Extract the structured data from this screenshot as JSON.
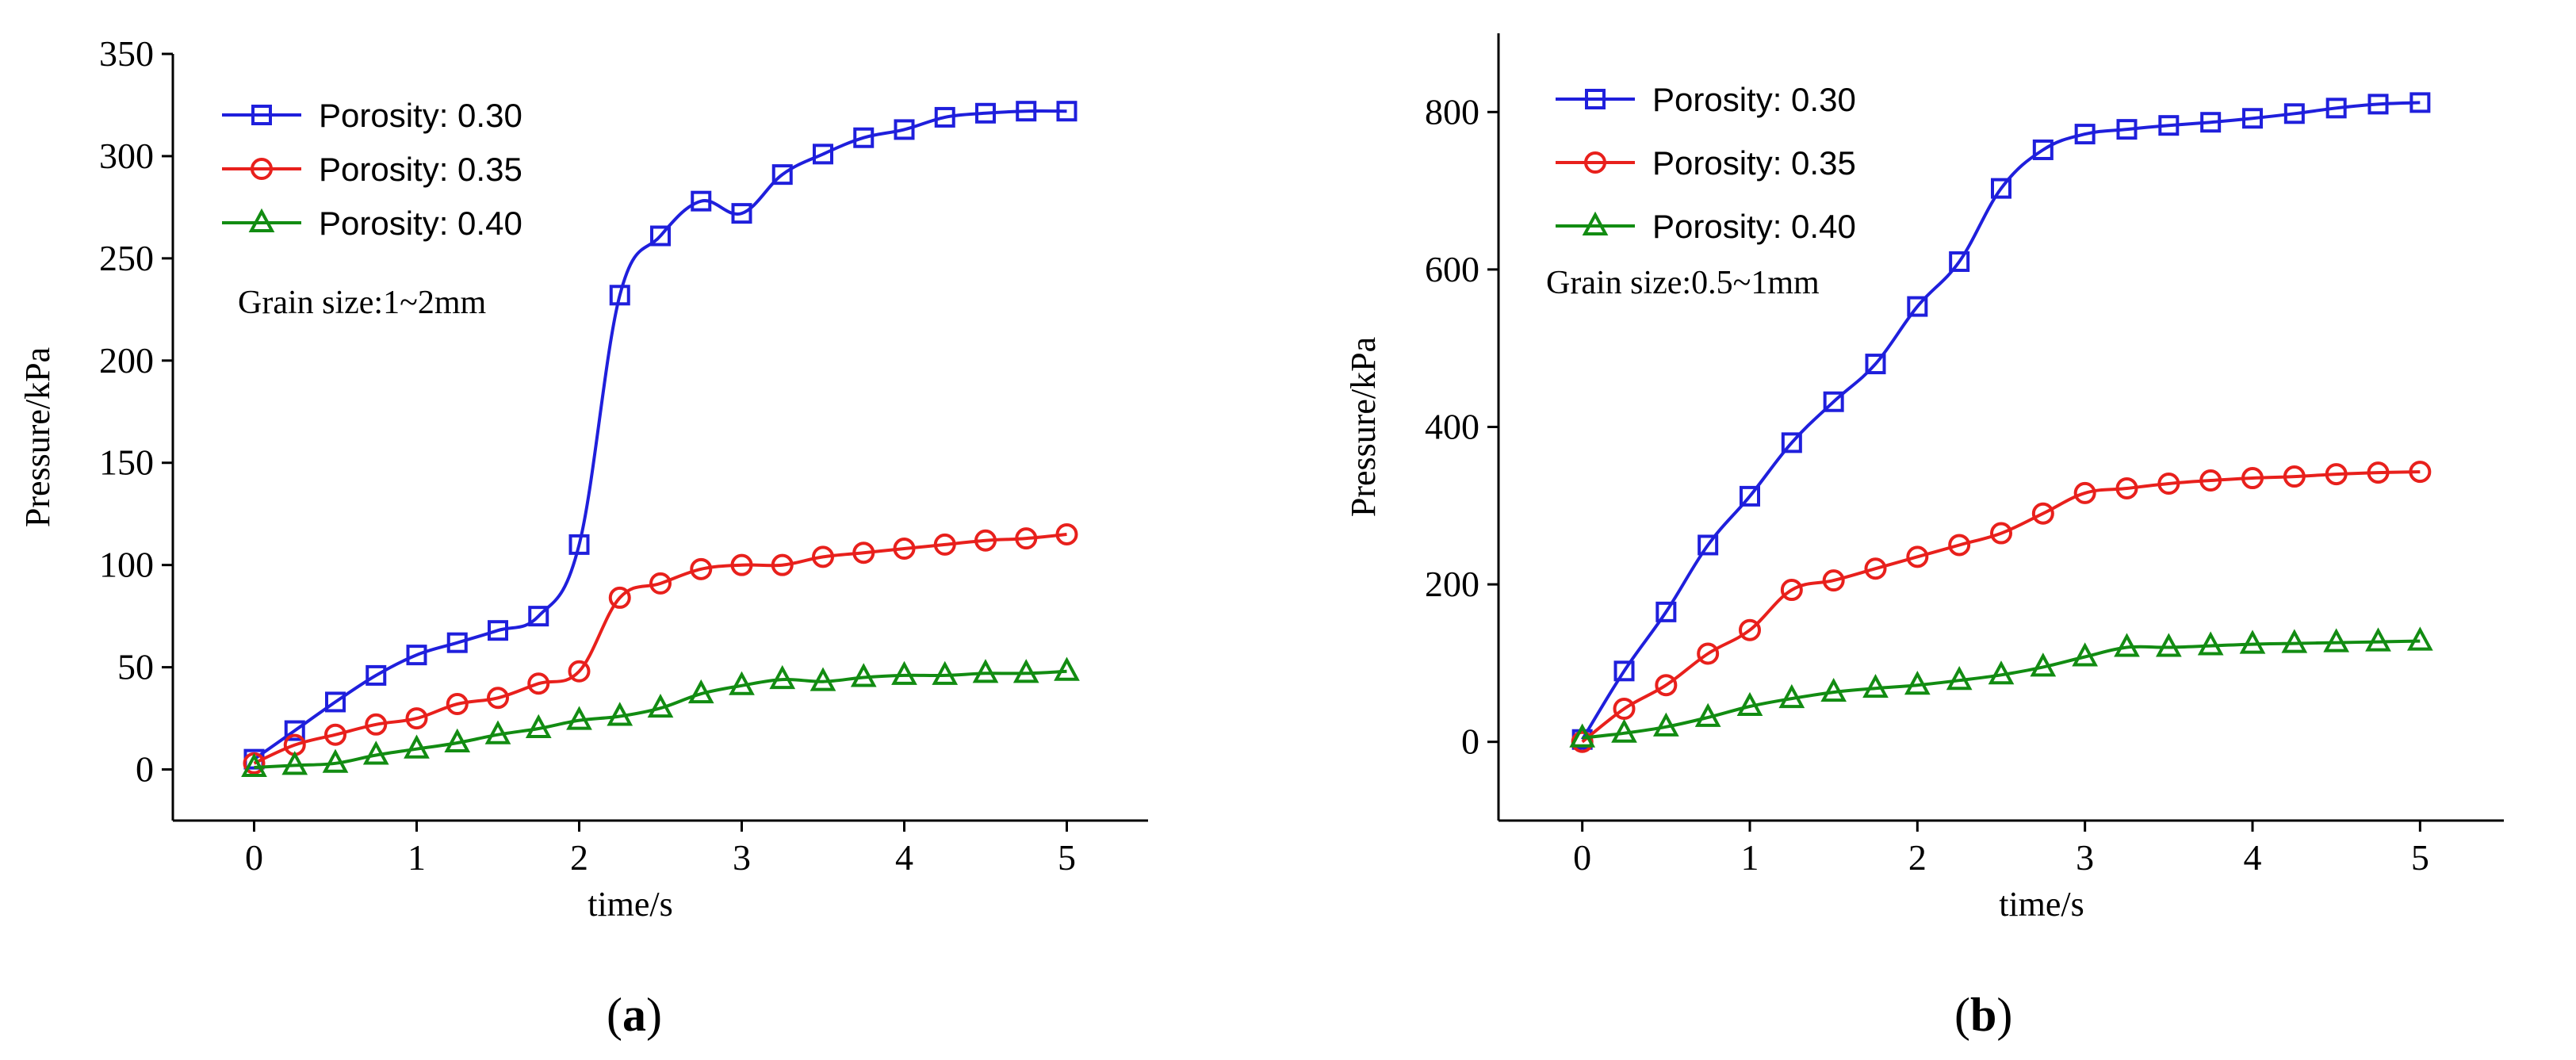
{
  "figure": {
    "panels": [
      {
        "label_open": "(",
        "label_letter": "a",
        "label_close": ")",
        "note": "Grain size:1~2mm"
      },
      {
        "label_open": "(",
        "label_letter": "b",
        "label_close": ")",
        "note": "Grain size:0.5~1mm"
      }
    ]
  },
  "chart_data": [
    {
      "type": "line",
      "xlabel": "time/s",
      "ylabel": "Pressure/kPa",
      "xlim": [
        -0.5,
        5.5
      ],
      "ylim": [
        -25,
        350
      ],
      "xticks": [
        0,
        1,
        2,
        3,
        4,
        5
      ],
      "yticks": [
        0,
        50,
        100,
        150,
        200,
        250,
        300,
        350
      ],
      "legend_position": "top-left",
      "grid": false,
      "x": [
        0,
        0.25,
        0.5,
        0.75,
        1.0,
        1.25,
        1.5,
        1.75,
        2.0,
        2.25,
        2.5,
        2.75,
        3.0,
        3.25,
        3.5,
        3.75,
        4.0,
        4.25,
        4.5,
        4.75,
        5.0
      ],
      "series": [
        {
          "name": "Porosity: 0.30",
          "color": "#1f1fdc",
          "marker": "square",
          "values": [
            5,
            19,
            33,
            46,
            56,
            62,
            68,
            75,
            110,
            232,
            261,
            278,
            272,
            291,
            301,
            309,
            313,
            319,
            321,
            322,
            322
          ]
        },
        {
          "name": "Porosity: 0.35",
          "color": "#e8201c",
          "marker": "circle",
          "values": [
            3,
            12,
            17,
            22,
            25,
            32,
            35,
            42,
            48,
            84,
            91,
            98,
            100,
            100,
            104,
            106,
            108,
            110,
            112,
            113,
            115
          ]
        },
        {
          "name": "Porosity: 0.40",
          "color": "#128c12",
          "marker": "triangle",
          "values": [
            1,
            2,
            3,
            7,
            10,
            13,
            17,
            20,
            24,
            26,
            30,
            37,
            41,
            44,
            43,
            45,
            46,
            46,
            47,
            47,
            48
          ]
        }
      ]
    },
    {
      "type": "line",
      "xlabel": "time/s",
      "ylabel": "Pressure/kPa",
      "xlim": [
        -0.5,
        5.5
      ],
      "ylim": [
        -100,
        900
      ],
      "xticks": [
        0,
        1,
        2,
        3,
        4,
        5
      ],
      "yticks": [
        0,
        200,
        400,
        600,
        800
      ],
      "legend_position": "top-left",
      "grid": false,
      "x": [
        0,
        0.25,
        0.5,
        0.75,
        1.0,
        1.25,
        1.5,
        1.75,
        2.0,
        2.25,
        2.5,
        2.75,
        3.0,
        3.25,
        3.5,
        3.75,
        4.0,
        4.25,
        4.5,
        4.75,
        5.0
      ],
      "series": [
        {
          "name": "Porosity: 0.30",
          "color": "#1f1fdc",
          "marker": "square",
          "values": [
            3,
            90,
            165,
            250,
            312,
            380,
            432,
            480,
            553,
            610,
            703,
            752,
            772,
            778,
            783,
            787,
            792,
            798,
            805,
            810,
            812
          ]
        },
        {
          "name": "Porosity: 0.35",
          "color": "#e8201c",
          "marker": "circle",
          "values": [
            0,
            42,
            72,
            112,
            142,
            193,
            205,
            220,
            235,
            250,
            265,
            290,
            316,
            322,
            328,
            332,
            335,
            337,
            340,
            342,
            343
          ]
        },
        {
          "name": "Porosity: 0.40",
          "color": "#128c12",
          "marker": "triangle",
          "values": [
            5,
            11,
            19,
            31,
            45,
            55,
            63,
            68,
            72,
            78,
            85,
            95,
            108,
            120,
            120,
            122,
            124,
            125,
            126,
            127,
            128
          ]
        }
      ]
    }
  ]
}
